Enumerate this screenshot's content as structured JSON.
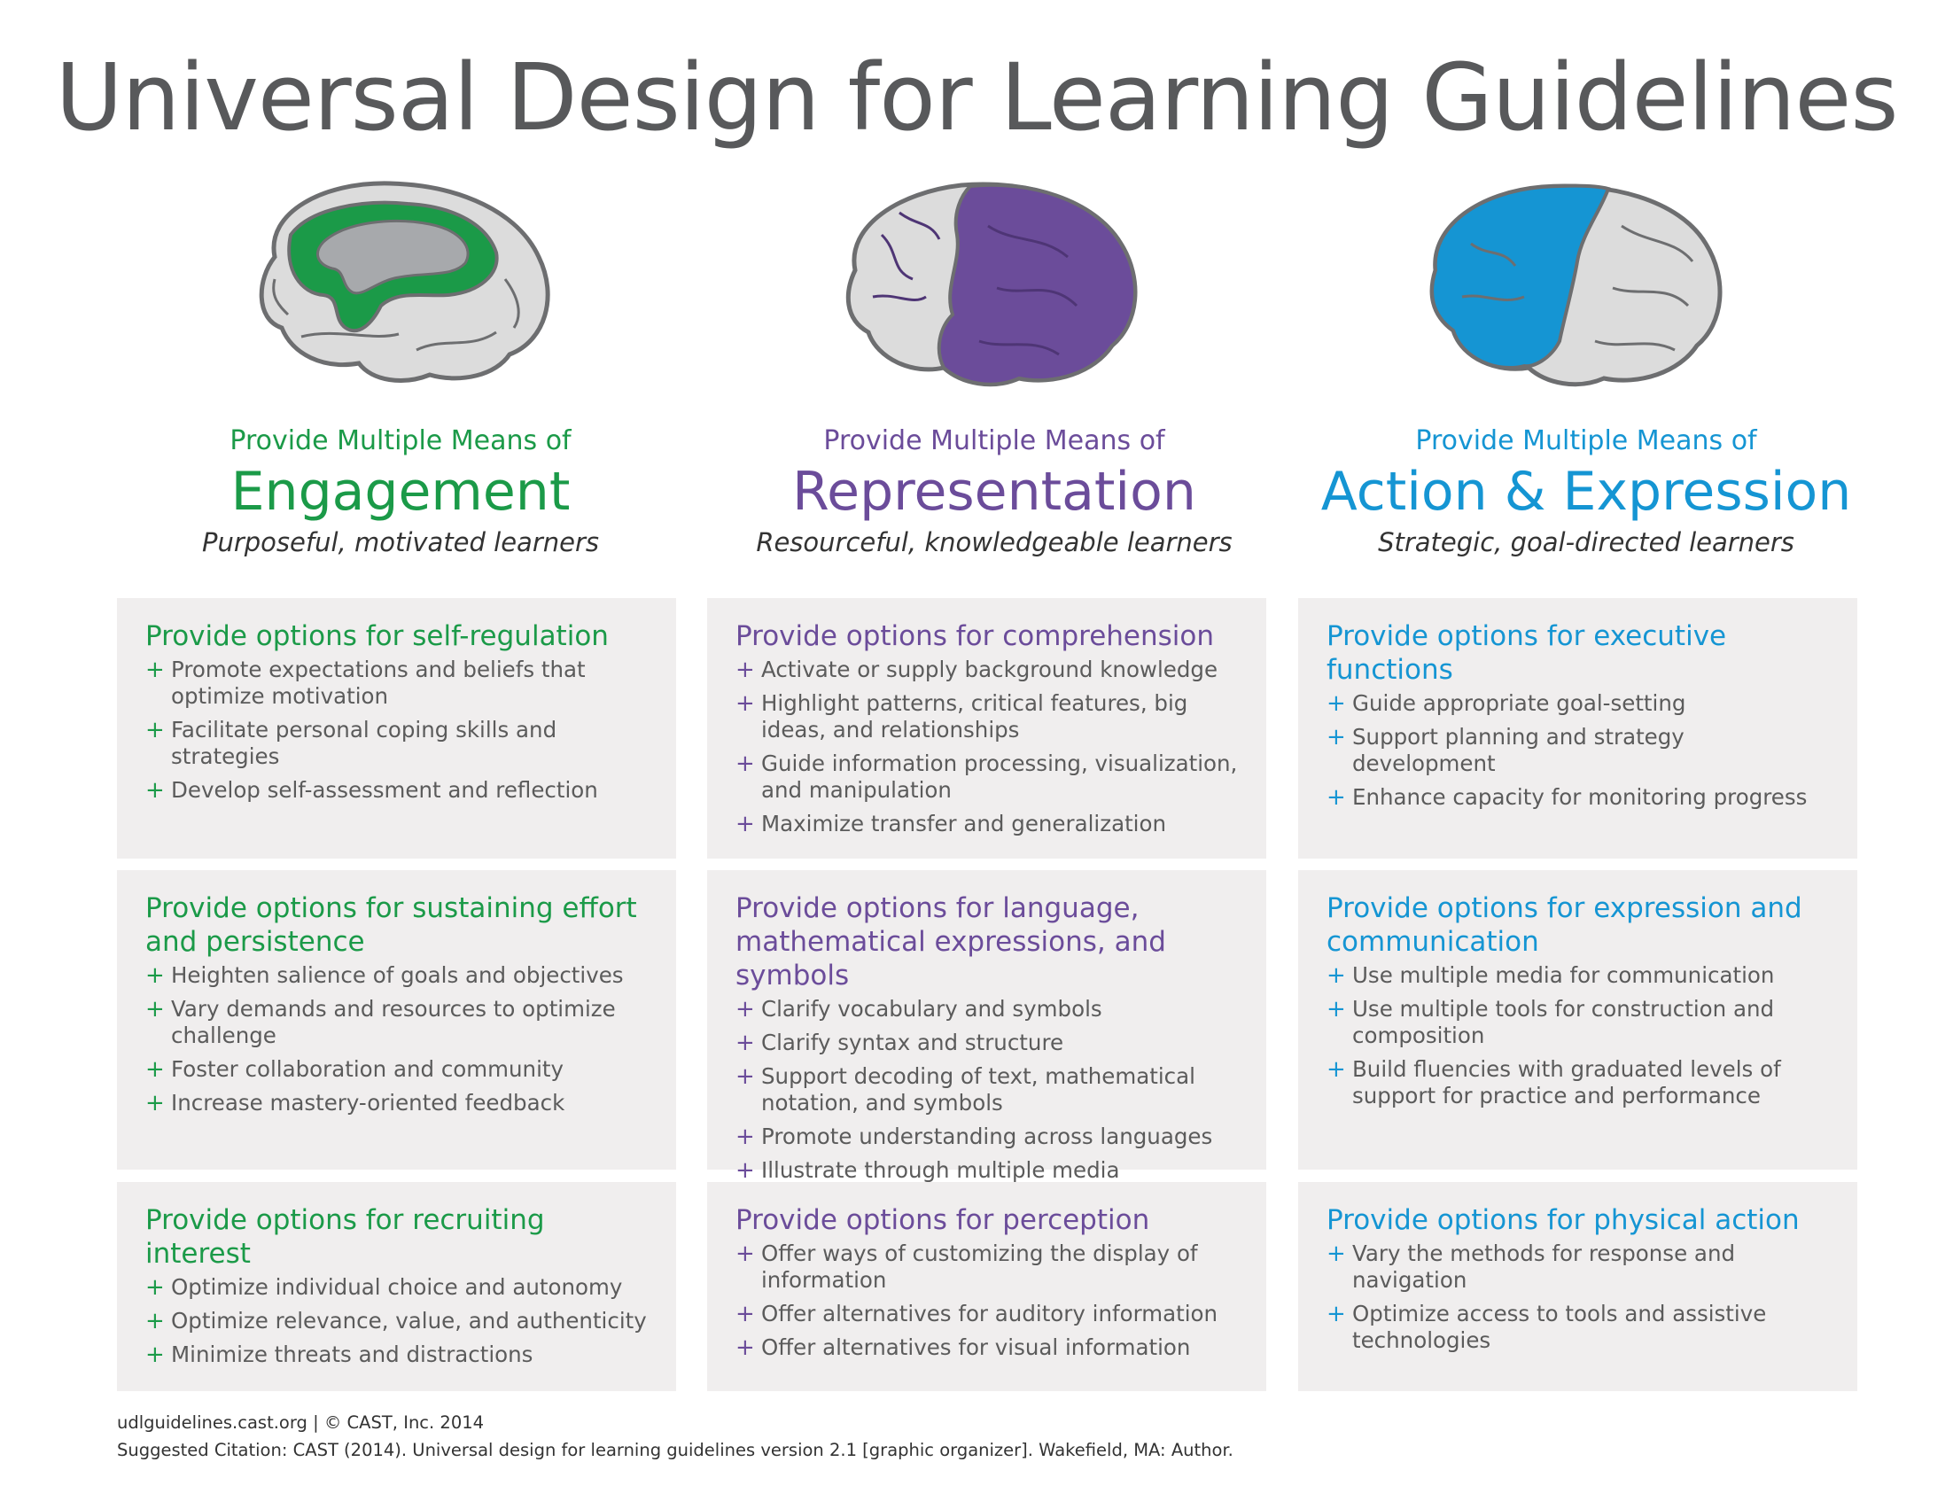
{
  "title": "Universal Design for Learning Guidelines",
  "colors": {
    "engagement": "#1b9a48",
    "representation": "#6b4c9a",
    "action": "#1595d3",
    "cell_bg": "#f0eeee"
  },
  "columns": [
    {
      "pre": "Provide Multiple Means of",
      "name": "Engagement",
      "sub": "Purposeful, motivated learners",
      "brain_icon": "brain-affective-network-icon",
      "cells": [
        {
          "heading": "Provide options for self-regulation",
          "items": [
            "Promote expectations and beliefs that optimize motivation",
            "Facilitate personal coping skills and strategies",
            "Develop self-assessment and reflection"
          ]
        },
        {
          "heading": "Provide options for sustaining effort and persistence",
          "items": [
            "Heighten salience of goals and objectives",
            "Vary demands and resources to optimize challenge",
            "Foster collaboration and community",
            "Increase mastery-oriented feedback"
          ]
        },
        {
          "heading": "Provide options for recruiting interest",
          "items": [
            "Optimize individual choice and autonomy",
            "Optimize relevance, value, and authenticity",
            "Minimize threats and distractions"
          ]
        }
      ]
    },
    {
      "pre": "Provide Multiple Means of",
      "name": "Representation",
      "sub": "Resourceful, knowledgeable learners",
      "brain_icon": "brain-recognition-network-icon",
      "cells": [
        {
          "heading": "Provide options for comprehension",
          "items": [
            "Activate or supply background knowledge",
            "Highlight patterns, critical features, big ideas, and relationships",
            "Guide information processing, visualization, and manipulation",
            "Maximize transfer and generalization"
          ]
        },
        {
          "heading": "Provide options for language, mathematical expressions, and symbols",
          "items": [
            "Clarify vocabulary and symbols",
            "Clarify syntax and structure",
            "Support decoding of text, mathematical notation, and symbols",
            "Promote understanding across languages",
            "Illustrate through multiple media"
          ]
        },
        {
          "heading": "Provide options for perception",
          "items": [
            "Offer ways of customizing the display of information",
            "Offer alternatives for auditory information",
            "Offer alternatives for visual information"
          ]
        }
      ]
    },
    {
      "pre": "Provide Multiple Means of",
      "name": "Action & Expression",
      "sub": "Strategic, goal-directed learners",
      "brain_icon": "brain-strategic-network-icon",
      "cells": [
        {
          "heading": "Provide options for executive functions",
          "items": [
            "Guide appropriate goal-setting",
            "Support planning and strategy development",
            "Enhance capacity for monitoring progress"
          ]
        },
        {
          "heading": "Provide options for expression and communication",
          "items": [
            "Use multiple media for communication",
            "Use multiple tools for construction and composition",
            "Build fluencies with graduated levels of support for practice and performance"
          ]
        },
        {
          "heading": "Provide options for physical action",
          "items": [
            "Vary the methods for response and navigation",
            "Optimize access to tools and assistive technologies"
          ]
        }
      ]
    }
  ],
  "bullet_symbol": "+",
  "footer": {
    "line1": "udlguidelines.cast.org | © CAST, Inc. 2014",
    "line2": "Suggested Citation: CAST (2014). Universal design for learning guidelines version 2.1 [graphic organizer]. Wakefield, MA: Author."
  }
}
